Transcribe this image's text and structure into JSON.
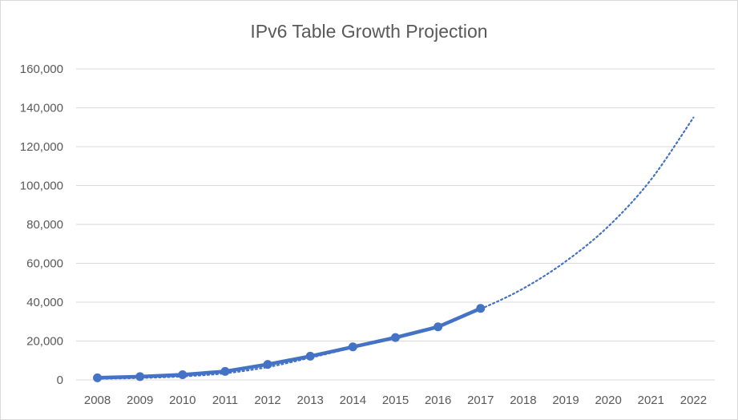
{
  "chart_data": {
    "type": "line",
    "title": "IPv6 Table Growth Projection",
    "xlabel": "",
    "ylabel": "",
    "categories": [
      "2008",
      "2009",
      "2010",
      "2011",
      "2012",
      "2013",
      "2014",
      "2015",
      "2016",
      "2017",
      "2018",
      "2019",
      "2020",
      "2021",
      "2022"
    ],
    "ylim": [
      0,
      160000
    ],
    "yticks": [
      0,
      20000,
      40000,
      60000,
      80000,
      100000,
      120000,
      140000,
      160000
    ],
    "ytick_labels": [
      "0",
      "20,000",
      "40,000",
      "60,000",
      "80,000",
      "100,000",
      "120,000",
      "140,000",
      "160,000"
    ],
    "grid": true,
    "legend": "none",
    "series": [
      {
        "style": "solid-with-markers",
        "color": "#4472c4",
        "values": [
          1100,
          1700,
          2700,
          4400,
          8000,
          12200,
          17000,
          21800,
          27300,
          36800,
          null,
          null,
          null,
          null,
          null
        ]
      },
      {
        "style": "dotted-trend",
        "color": "#4472c4",
        "values": [
          600,
          1000,
          1800,
          3400,
          6600,
          11400,
          16600,
          22000,
          28000,
          36500,
          47000,
          61000,
          79000,
          103000,
          135000
        ]
      }
    ]
  }
}
